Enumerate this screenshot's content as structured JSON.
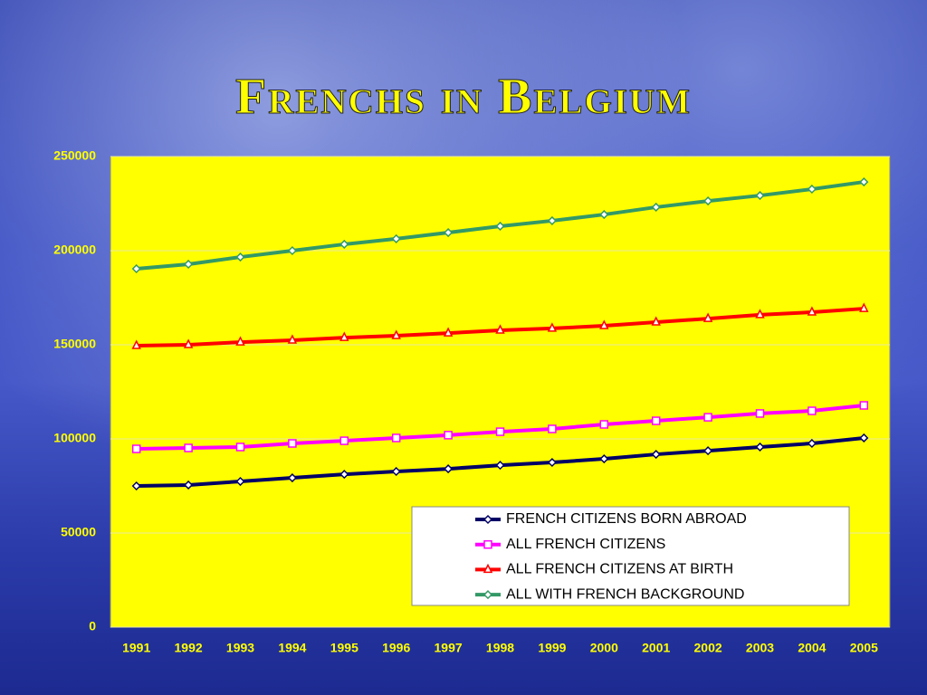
{
  "chart_data": {
    "type": "line",
    "title": "Frenchs in Belgium",
    "categories": [
      "1991",
      "1992",
      "1993",
      "1994",
      "1995",
      "1996",
      "1997",
      "1998",
      "1999",
      "2000",
      "2001",
      "2002",
      "2003",
      "2004",
      "2005"
    ],
    "series": [
      {
        "name": "FRENCH CITIZENS BORN ABROAD",
        "color": "#000066",
        "marker": "diamond",
        "values": [
          75000,
          75500,
          77400,
          79300,
          81200,
          82700,
          84100,
          86000,
          87500,
          89400,
          91800,
          93700,
          95700,
          97600,
          100500
        ]
      },
      {
        "name": "ALL FRENCH CITIZENS",
        "color": "#ff00ff",
        "marker": "square",
        "values": [
          94700,
          95200,
          95700,
          97600,
          99000,
          100500,
          102000,
          103800,
          105300,
          107700,
          109600,
          111500,
          113500,
          114900,
          117800
        ]
      },
      {
        "name": "ALL FRENCH CITIZENS AT BIRTH",
        "color": "#ff0000",
        "marker": "triangle",
        "values": [
          149500,
          150000,
          151400,
          152400,
          153800,
          154800,
          156200,
          157700,
          158700,
          160100,
          162000,
          163900,
          165900,
          167300,
          169200
        ]
      },
      {
        "name": "ALL WITH FRENCH BACKGROUND",
        "color": "#339966",
        "marker": "diamond",
        "values": [
          190400,
          192800,
          196600,
          200000,
          203400,
          206300,
          209600,
          213000,
          215900,
          219200,
          223100,
          226400,
          229300,
          232700,
          236500
        ]
      }
    ],
    "ylim": [
      0,
      250000
    ],
    "yticks": [
      0,
      50000,
      100000,
      150000,
      200000,
      250000
    ],
    "grid": true,
    "legend": "lower-right"
  }
}
